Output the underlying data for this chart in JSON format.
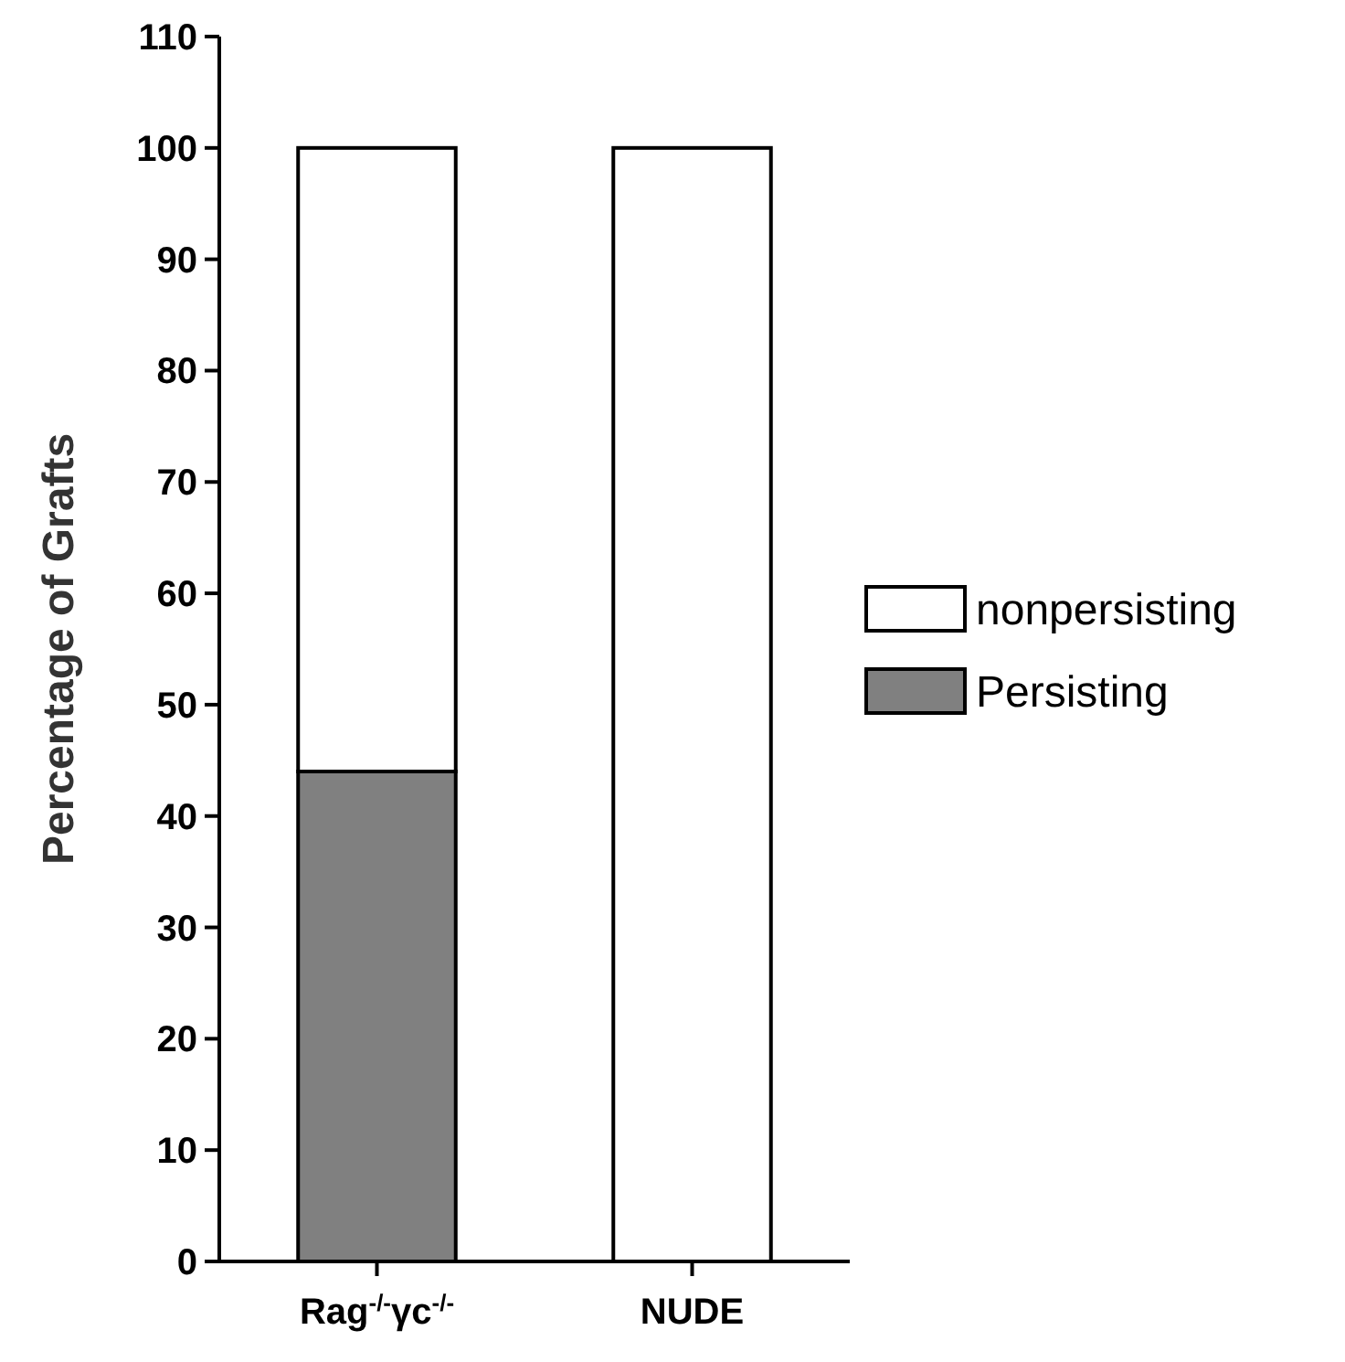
{
  "chart_data": {
    "type": "bar",
    "stacked": true,
    "ylabel": "Percentage of Grafts",
    "categories": [
      "Rag$^{-/-}$γc$^{-/-}$",
      "NUDE"
    ],
    "series": [
      {
        "name": "Persisting",
        "color": "#808080",
        "values": [
          44,
          0
        ]
      },
      {
        "name": "nonpersisting",
        "color": "#ffffff",
        "values": [
          56,
          100
        ]
      }
    ],
    "ylim": [
      0,
      110
    ],
    "yticks": [
      0,
      10,
      20,
      30,
      40,
      50,
      60,
      70,
      80,
      90,
      100,
      110
    ],
    "legend": "right"
  }
}
